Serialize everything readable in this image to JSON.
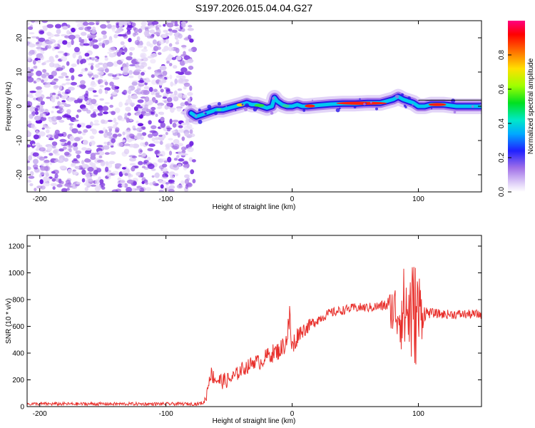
{
  "title": "S197.2026.015.04.04.G27",
  "chart_data": [
    {
      "type": "heatmap",
      "xlabel": "Height of straight line (km)",
      "ylabel": "Frequency (Hz)",
      "xlim": [
        -210,
        150
      ],
      "ylim": [
        -25,
        25
      ],
      "xticks": [
        -200,
        -100,
        0,
        100
      ],
      "yticks": [
        -20,
        -10,
        0,
        10,
        20
      ],
      "noise_region_x": [
        -210,
        -80
      ],
      "signal_track": {
        "x": [
          -80,
          -76,
          -72,
          -68,
          -64,
          -60,
          -55,
          -50,
          -45,
          -40,
          -36,
          -32,
          -28,
          -24,
          -20,
          -16,
          -14,
          -12,
          -8,
          -4,
          0,
          4,
          8,
          12,
          20,
          30,
          40,
          50,
          60,
          70,
          75,
          80,
          84,
          88,
          92,
          96,
          100,
          105,
          110,
          120,
          130,
          140,
          150
        ],
        "y": [
          -2,
          -3,
          -2.5,
          -2,
          -1.5,
          -1,
          -1,
          -0.5,
          0,
          0.5,
          1,
          0.5,
          0.5,
          0,
          -0.5,
          0,
          2.5,
          1.5,
          0.5,
          0,
          0,
          0.5,
          0,
          0,
          0.3,
          0.6,
          0.8,
          0.8,
          1,
          1,
          1.5,
          2,
          2.8,
          2,
          1.5,
          1,
          0,
          0,
          0.5,
          0.5,
          0,
          0,
          0
        ]
      },
      "colorbar": {
        "label": "Normalized spectral amplitude",
        "ticks": [
          0.0,
          0.2,
          0.4,
          0.6,
          0.8
        ],
        "range": [
          0,
          1
        ]
      }
    },
    {
      "type": "line",
      "xlabel": "Height of straight line (km)",
      "ylabel": "SNR (10 * v/v)",
      "xlim": [
        -210,
        150
      ],
      "ylim": [
        0,
        1280
      ],
      "xticks": [
        -200,
        -100,
        0,
        100
      ],
      "yticks": [
        0,
        200,
        400,
        600,
        800,
        1000,
        1200
      ],
      "line_color": "#e8302c",
      "series": [
        {
          "name": "SNR",
          "x": [
            -210,
            -150,
            -100,
            -75,
            -70,
            -68,
            -65,
            -60,
            -55,
            -50,
            -45,
            -40,
            -35,
            -30,
            -25,
            -20,
            -15,
            -10,
            -5,
            -2,
            0,
            5,
            10,
            20,
            30,
            40,
            50,
            60,
            70,
            75,
            80,
            85,
            90,
            95,
            100,
            105,
            110,
            120,
            130,
            140,
            150
          ],
          "y": [
            20,
            20,
            20,
            20,
            30,
            80,
            250,
            200,
            190,
            200,
            230,
            280,
            300,
            340,
            330,
            380,
            400,
            420,
            480,
            650,
            430,
            550,
            580,
            650,
            700,
            720,
            740,
            740,
            750,
            760,
            720,
            700,
            720,
            690,
            700,
            700,
            700,
            690,
            690,
            690,
            690
          ],
          "amp": [
            12,
            12,
            12,
            12,
            15,
            40,
            60,
            60,
            60,
            60,
            55,
            55,
            55,
            55,
            55,
            60,
            70,
            70,
            80,
            130,
            120,
            60,
            55,
            40,
            35,
            35,
            35,
            35,
            40,
            50,
            200,
            250,
            380,
            420,
            380,
            60,
            35,
            35,
            35,
            35,
            35
          ]
        }
      ]
    }
  ]
}
